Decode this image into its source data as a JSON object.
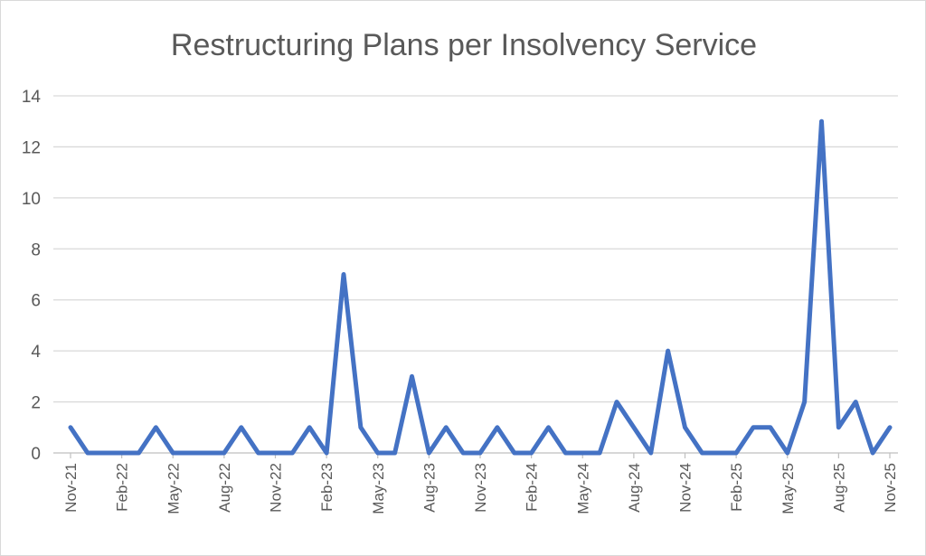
{
  "chart_data": {
    "type": "line",
    "title": "Restructuring Plans per Insolvency Service",
    "xlabel": "",
    "ylabel": "",
    "ylim": [
      0,
      14
    ],
    "yticks": [
      0,
      2,
      4,
      6,
      8,
      10,
      12,
      14
    ],
    "grid": true,
    "legend": "none",
    "color": "#4472C4",
    "x_tick_labels": [
      "Nov-21",
      "Feb-22",
      "May-22",
      "Aug-22",
      "Nov-22",
      "Feb-23",
      "May-23",
      "Aug-23",
      "Nov-23",
      "Feb-24",
      "May-24",
      "Aug-24",
      "Nov-24",
      "Feb-25",
      "May-25",
      "Aug-25",
      "Nov-25"
    ],
    "x": [
      "Nov-21",
      "Dec-21",
      "Jan-22",
      "Feb-22",
      "Mar-22",
      "Apr-22",
      "May-22",
      "Jun-22",
      "Jul-22",
      "Aug-22",
      "Sep-22",
      "Oct-22",
      "Nov-22",
      "Dec-22",
      "Jan-23",
      "Feb-23",
      "Mar-23",
      "Apr-23",
      "May-23",
      "Jun-23",
      "Jul-23",
      "Aug-23",
      "Sep-23",
      "Oct-23",
      "Nov-23",
      "Dec-23",
      "Jan-24",
      "Feb-24",
      "Mar-24",
      "Apr-24",
      "May-24",
      "Jun-24",
      "Jul-24",
      "Aug-24",
      "Sep-24",
      "Oct-24",
      "Nov-24",
      "Dec-24",
      "Jan-25",
      "Feb-25",
      "Mar-25",
      "Apr-25",
      "May-25",
      "Jun-25",
      "Jul-25",
      "Aug-25",
      "Sep-25",
      "Oct-25",
      "Nov-25"
    ],
    "series": [
      {
        "values": [
          1,
          0,
          0,
          0,
          0,
          1,
          0,
          0,
          0,
          0,
          1,
          0,
          0,
          0,
          1,
          0,
          7,
          1,
          0,
          0,
          3,
          0,
          1,
          0,
          0,
          1,
          0,
          0,
          1,
          0,
          0,
          0,
          2,
          1,
          0,
          4,
          1,
          0,
          0,
          0,
          1,
          1,
          0,
          2,
          13,
          1,
          2,
          0,
          1
        ]
      }
    ]
  }
}
